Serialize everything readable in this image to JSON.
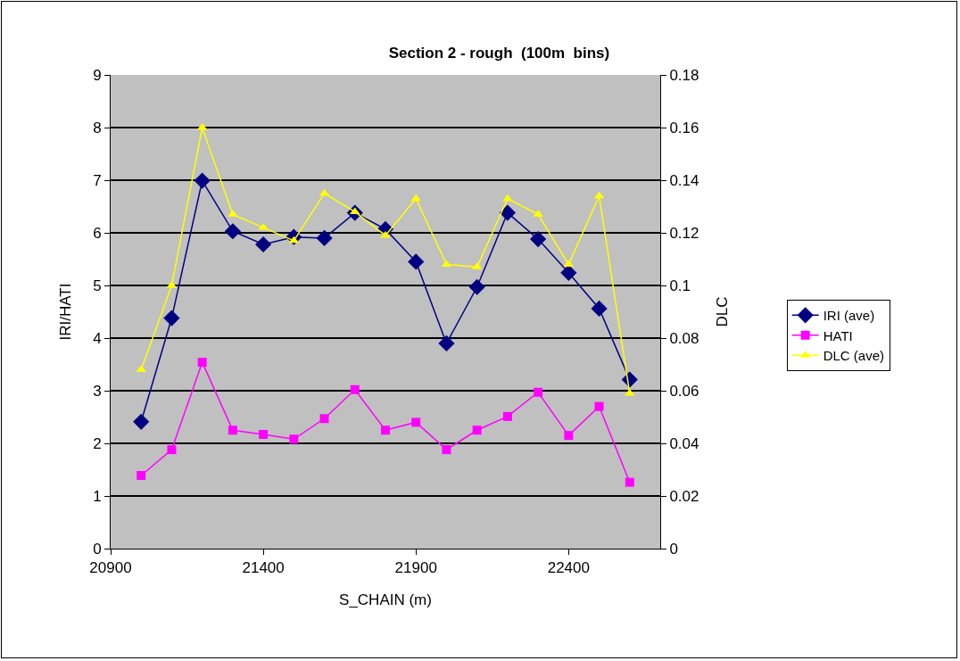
{
  "chart_data": {
    "type": "line",
    "title": "Section 2 - rough  (100m  bins)",
    "xlabel": "S_CHAIN (m)",
    "ylabel": "IRI/HATI",
    "y2label": "DLC",
    "x": [
      21000,
      21100,
      21200,
      21300,
      21400,
      21500,
      21600,
      21700,
      21800,
      21900,
      22000,
      22100,
      22200,
      22300,
      22400,
      22500,
      22600
    ],
    "series": [
      {
        "name": "IRI (ave)",
        "color": "#000080",
        "marker": "diamond",
        "values": [
          2.41,
          4.38,
          6.99,
          6.03,
          5.78,
          5.92,
          5.9,
          6.38,
          6.07,
          5.45,
          3.9,
          4.97,
          6.38,
          5.88,
          5.24,
          4.56,
          3.21
        ]
      },
      {
        "name": "HATI",
        "color": "#ff00ff",
        "marker": "square",
        "values": [
          1.39,
          1.88,
          3.54,
          2.25,
          2.17,
          2.08,
          2.47,
          3.02,
          2.25,
          2.4,
          1.88,
          2.25,
          2.51,
          2.97,
          2.15,
          2.7,
          1.26
        ]
      },
      {
        "name": "DLC (ave)",
        "color": "#ffff00",
        "marker": "triangle",
        "axis": "y2",
        "values": [
          0.068,
          0.1,
          0.16,
          0.127,
          0.122,
          0.117,
          0.135,
          0.128,
          0.119,
          0.133,
          0.108,
          0.107,
          0.133,
          0.127,
          0.108,
          0.134,
          0.059
        ]
      }
    ],
    "xlim": [
      20900,
      22700
    ],
    "xticks": [
      20900,
      21400,
      21900,
      22400
    ],
    "ylim": [
      0,
      9
    ],
    "yticks": [
      0,
      1,
      2,
      3,
      4,
      5,
      6,
      7,
      8,
      9
    ],
    "y2lim": [
      0,
      0.18
    ],
    "y2ticks": [
      0,
      0.02,
      0.04,
      0.06,
      0.08,
      0.1,
      0.12,
      0.14,
      0.16,
      0.18
    ],
    "grid": "y",
    "legend": "right",
    "line_style": "solid"
  }
}
